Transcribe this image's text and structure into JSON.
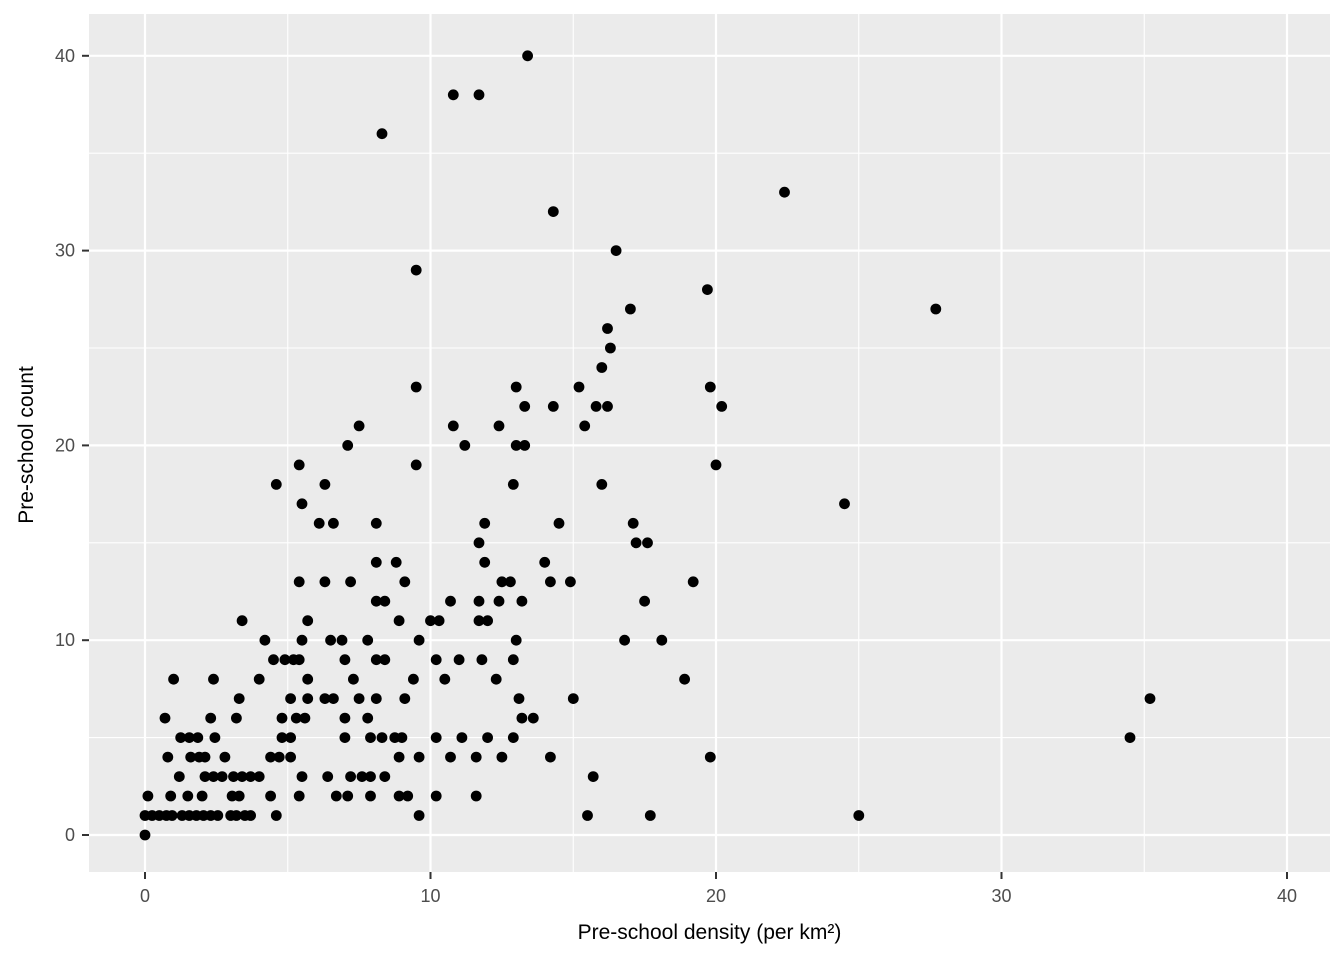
{
  "chart_data": {
    "type": "scatter",
    "title": "",
    "xlabel": "Pre-school density (per km²)",
    "ylabel": "Pre-school count",
    "xlim": [
      -1.96,
      41.5
    ],
    "ylim": [
      -2.0,
      42.1
    ],
    "x_major_ticks": [
      0,
      10,
      20,
      30,
      40
    ],
    "y_major_ticks": [
      0,
      10,
      20,
      30,
      40
    ],
    "x_minor_ticks": [
      5,
      15,
      25,
      35
    ],
    "y_minor_ticks": [
      5,
      15,
      25,
      35
    ],
    "x_tick_labels": [
      "0",
      "10",
      "20",
      "30",
      "40"
    ],
    "y_tick_labels": [
      "0",
      "10",
      "20",
      "30",
      "40"
    ],
    "grid": "on",
    "legend": "none",
    "colors": {
      "panel_bg": "#EBEBEB",
      "grid_major": "#FFFFFF",
      "grid_minor": "#FFFFFF",
      "point": "#000000",
      "tick_mark": "#333333",
      "tick_label": "#4D4D4D",
      "axis_title": "#000000"
    },
    "points": [
      [
        13.4,
        40
      ],
      [
        10.8,
        38
      ],
      [
        11.7,
        38
      ],
      [
        8.3,
        36
      ],
      [
        22.4,
        33
      ],
      [
        14.3,
        32
      ],
      [
        16.5,
        30
      ],
      [
        9.5,
        29
      ],
      [
        19.7,
        28
      ],
      [
        17.0,
        27
      ],
      [
        27.7,
        27
      ],
      [
        16.2,
        26
      ],
      [
        16.3,
        25
      ],
      [
        16.0,
        24
      ],
      [
        9.5,
        23
      ],
      [
        13.0,
        23
      ],
      [
        15.2,
        23
      ],
      [
        19.8,
        23
      ],
      [
        13.3,
        22
      ],
      [
        14.3,
        22
      ],
      [
        15.8,
        22
      ],
      [
        16.2,
        22
      ],
      [
        20.2,
        22
      ],
      [
        7.5,
        21
      ],
      [
        10.8,
        21
      ],
      [
        12.4,
        21
      ],
      [
        15.4,
        21
      ],
      [
        7.1,
        20
      ],
      [
        11.2,
        20
      ],
      [
        13.0,
        20
      ],
      [
        13.3,
        20
      ],
      [
        5.4,
        19
      ],
      [
        9.5,
        19
      ],
      [
        20.0,
        19
      ],
      [
        4.6,
        18
      ],
      [
        6.3,
        18
      ],
      [
        12.9,
        18
      ],
      [
        16.0,
        18
      ],
      [
        5.5,
        17
      ],
      [
        24.5,
        17
      ],
      [
        6.1,
        16
      ],
      [
        6.6,
        16
      ],
      [
        8.1,
        16
      ],
      [
        11.9,
        16
      ],
      [
        14.5,
        16
      ],
      [
        17.1,
        16
      ],
      [
        11.7,
        15
      ],
      [
        17.2,
        15
      ],
      [
        17.6,
        15
      ],
      [
        8.1,
        14
      ],
      [
        8.8,
        14
      ],
      [
        11.9,
        14
      ],
      [
        14.0,
        14
      ],
      [
        5.4,
        13
      ],
      [
        6.3,
        13
      ],
      [
        7.2,
        13
      ],
      [
        9.1,
        13
      ],
      [
        12.5,
        13
      ],
      [
        12.8,
        13
      ],
      [
        14.2,
        13
      ],
      [
        14.9,
        13
      ],
      [
        19.2,
        13
      ],
      [
        8.1,
        12
      ],
      [
        8.4,
        12
      ],
      [
        10.7,
        12
      ],
      [
        11.7,
        12
      ],
      [
        12.4,
        12
      ],
      [
        13.2,
        12
      ],
      [
        17.5,
        12
      ],
      [
        3.4,
        11
      ],
      [
        5.7,
        11
      ],
      [
        8.9,
        11
      ],
      [
        10.0,
        11
      ],
      [
        10.3,
        11
      ],
      [
        11.7,
        11
      ],
      [
        12.0,
        11
      ],
      [
        4.2,
        10
      ],
      [
        5.5,
        10
      ],
      [
        6.5,
        10
      ],
      [
        6.9,
        10
      ],
      [
        7.8,
        10
      ],
      [
        9.6,
        10
      ],
      [
        13.0,
        10
      ],
      [
        16.8,
        10
      ],
      [
        18.1,
        10
      ],
      [
        4.5,
        9
      ],
      [
        4.9,
        9
      ],
      [
        5.2,
        9
      ],
      [
        5.4,
        9
      ],
      [
        7.0,
        9
      ],
      [
        8.1,
        9
      ],
      [
        8.4,
        9
      ],
      [
        10.2,
        9
      ],
      [
        11.0,
        9
      ],
      [
        11.8,
        9
      ],
      [
        12.9,
        9
      ],
      [
        1.0,
        8
      ],
      [
        2.4,
        8
      ],
      [
        4.0,
        8
      ],
      [
        5.7,
        8
      ],
      [
        7.3,
        8
      ],
      [
        9.4,
        8
      ],
      [
        10.5,
        8
      ],
      [
        12.3,
        8
      ],
      [
        18.9,
        8
      ],
      [
        3.3,
        7
      ],
      [
        5.1,
        7
      ],
      [
        5.7,
        7
      ],
      [
        6.3,
        7
      ],
      [
        6.6,
        7
      ],
      [
        7.5,
        7
      ],
      [
        8.1,
        7
      ],
      [
        9.1,
        7
      ],
      [
        13.1,
        7
      ],
      [
        15.0,
        7
      ],
      [
        35.2,
        7
      ],
      [
        0.7,
        6
      ],
      [
        2.3,
        6
      ],
      [
        3.2,
        6
      ],
      [
        4.8,
        6
      ],
      [
        5.3,
        6
      ],
      [
        5.6,
        6
      ],
      [
        7.0,
        6
      ],
      [
        7.8,
        6
      ],
      [
        13.2,
        6
      ],
      [
        13.6,
        6
      ],
      [
        1.25,
        5
      ],
      [
        1.55,
        5
      ],
      [
        1.85,
        5
      ],
      [
        2.45,
        5
      ],
      [
        4.8,
        5
      ],
      [
        5.1,
        5
      ],
      [
        7.0,
        5
      ],
      [
        7.9,
        5
      ],
      [
        8.3,
        5
      ],
      [
        8.75,
        5
      ],
      [
        9.0,
        5
      ],
      [
        10.2,
        5
      ],
      [
        11.1,
        5
      ],
      [
        12.0,
        5
      ],
      [
        12.9,
        5
      ],
      [
        34.5,
        5
      ],
      [
        0.8,
        4
      ],
      [
        1.6,
        4
      ],
      [
        1.9,
        4
      ],
      [
        2.1,
        4
      ],
      [
        2.8,
        4
      ],
      [
        4.4,
        4
      ],
      [
        4.7,
        4
      ],
      [
        5.1,
        4
      ],
      [
        8.9,
        4
      ],
      [
        9.6,
        4
      ],
      [
        10.7,
        4
      ],
      [
        11.6,
        4
      ],
      [
        12.5,
        4
      ],
      [
        14.2,
        4
      ],
      [
        19.8,
        4
      ],
      [
        1.2,
        3
      ],
      [
        2.1,
        3
      ],
      [
        2.4,
        3
      ],
      [
        2.7,
        3
      ],
      [
        3.1,
        3
      ],
      [
        3.4,
        3
      ],
      [
        3.7,
        3
      ],
      [
        4.0,
        3
      ],
      [
        5.5,
        3
      ],
      [
        6.4,
        3
      ],
      [
        7.2,
        3
      ],
      [
        7.6,
        3
      ],
      [
        7.9,
        3
      ],
      [
        8.4,
        3
      ],
      [
        15.7,
        3
      ],
      [
        0.1,
        2
      ],
      [
        0.9,
        2
      ],
      [
        1.5,
        2
      ],
      [
        2.0,
        2
      ],
      [
        3.05,
        2
      ],
      [
        3.3,
        2
      ],
      [
        4.4,
        2
      ],
      [
        5.4,
        2
      ],
      [
        6.7,
        2
      ],
      [
        7.1,
        2
      ],
      [
        7.9,
        2
      ],
      [
        8.9,
        2
      ],
      [
        9.2,
        2
      ],
      [
        10.2,
        2
      ],
      [
        11.6,
        2
      ],
      [
        0.0,
        1
      ],
      [
        0.25,
        1
      ],
      [
        0.5,
        1
      ],
      [
        0.75,
        1
      ],
      [
        0.95,
        1
      ],
      [
        1.3,
        1
      ],
      [
        1.55,
        1
      ],
      [
        1.8,
        1
      ],
      [
        2.05,
        1
      ],
      [
        2.3,
        1
      ],
      [
        2.55,
        1
      ],
      [
        3.0,
        1
      ],
      [
        3.2,
        1
      ],
      [
        3.5,
        1
      ],
      [
        3.7,
        1
      ],
      [
        4.6,
        1
      ],
      [
        9.6,
        1
      ],
      [
        15.5,
        1
      ],
      [
        17.7,
        1
      ],
      [
        25.0,
        1
      ],
      [
        0.0,
        0
      ]
    ]
  }
}
